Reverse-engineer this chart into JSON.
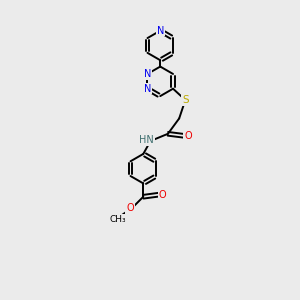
{
  "bg_color": "#ebebeb",
  "atom_colors": {
    "C": "#000000",
    "N": "#0000ee",
    "O": "#ee0000",
    "S": "#bbaa00",
    "H": "#407070"
  },
  "lw": 1.4,
  "fs": 7.0,
  "r": 0.72
}
